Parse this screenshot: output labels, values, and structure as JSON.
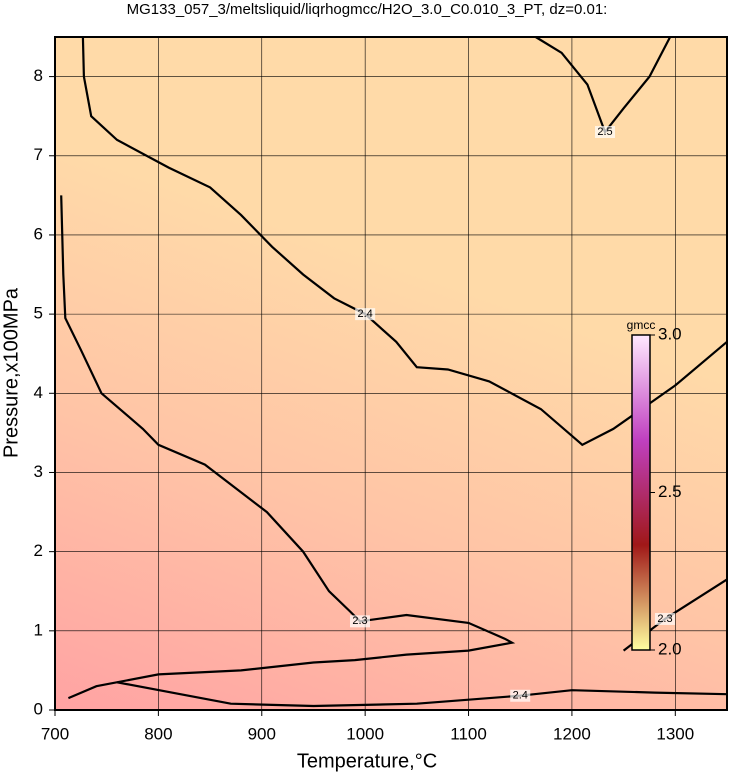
{
  "chart_data": {
    "type": "contour",
    "title": "MG133_057_3/meltsliquid/liqrhogmcc/H2O_3.0_C0.010_3_PT, dz=0.01:",
    "x_label": "Temperature,°C",
    "y_label": "Pressure,x100MPa",
    "xlim": [
      700,
      1350
    ],
    "ylim": [
      0,
      8.5
    ],
    "xticks": [
      700,
      800,
      900,
      1000,
      1100,
      1200,
      1300
    ],
    "yticks": [
      0,
      1,
      2,
      3,
      4,
      5,
      6,
      7,
      8
    ],
    "grid": true,
    "background_colors": [
      "#ffa3a3",
      "#ffc4a6",
      "#ffdaa8"
    ],
    "contours": [
      {
        "level": 2.4,
        "x": [
          727,
          728,
          735,
          760,
          810,
          850,
          880,
          910,
          940,
          970,
          1000,
          1030,
          1050,
          1080,
          1120,
          1170,
          1210,
          1240,
          1300,
          1350
        ],
        "y": [
          8.5,
          8.0,
          7.5,
          7.2,
          6.85,
          6.6,
          6.25,
          5.85,
          5.5,
          5.2,
          5.0,
          4.65,
          4.33,
          4.3,
          4.15,
          3.8,
          3.35,
          3.55,
          4.1,
          4.65
        ]
      },
      {
        "level": 2.5,
        "x": [
          1165,
          1190,
          1215,
          1232,
          1250,
          1275,
          1295
        ],
        "y": [
          8.5,
          8.3,
          7.9,
          7.3,
          7.6,
          8.0,
          8.5
        ]
      },
      {
        "level": 2.3,
        "x": [
          706,
          708,
          710,
          725,
          745,
          785,
          800,
          845,
          905,
          940,
          965,
          985,
          995,
          1040,
          1100,
          1135,
          1142,
          1100,
          1040,
          990,
          950,
          880,
          800,
          740,
          713
        ],
        "y": [
          6.5,
          5.5,
          4.95,
          4.55,
          4.0,
          3.55,
          3.35,
          3.1,
          2.5,
          2.0,
          1.5,
          1.25,
          1.12,
          1.2,
          1.1,
          0.9,
          0.85,
          0.75,
          0.7,
          0.63,
          0.6,
          0.5,
          0.45,
          0.3,
          0.15
        ]
      },
      {
        "level": 2.3,
        "x": [
          1350,
          1320,
          1290,
          1270,
          1250
        ],
        "y": [
          1.65,
          1.4,
          1.15,
          0.95,
          0.75
        ]
      },
      {
        "level": 2.4,
        "x": [
          760,
          870,
          950,
          1050,
          1150,
          1200,
          1280,
          1350
        ],
        "y": [
          0.35,
          0.08,
          0.05,
          0.08,
          0.18,
          0.25,
          0.22,
          0.2
        ]
      }
    ],
    "colorbar": {
      "label": "gmcc",
      "lim": [
        2,
        3
      ],
      "ticks": [
        {
          "value": 2,
          "label": "2.0"
        },
        2.5,
        {
          "value": 3,
          "label": "3.0"
        }
      ],
      "colors": [
        "#ffffa0",
        "#a01818",
        "#c040c0",
        "#ffe8ff"
      ]
    }
  }
}
